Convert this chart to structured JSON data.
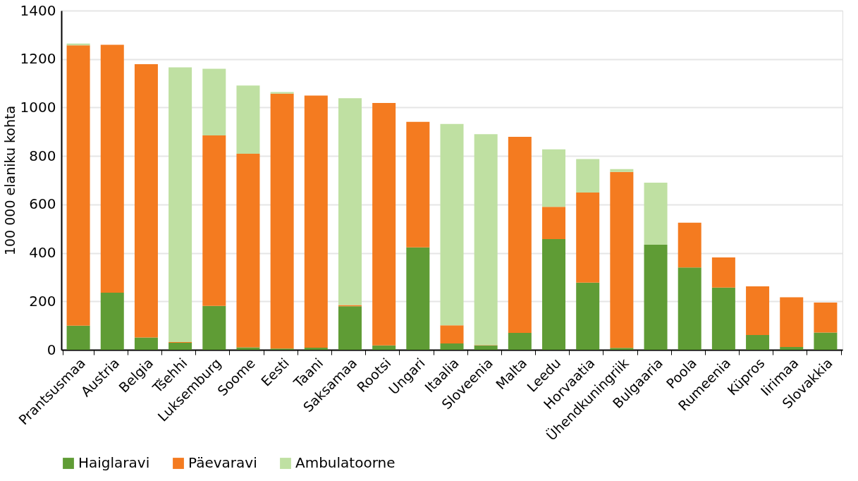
{
  "chart_data": {
    "type": "bar",
    "stacked": true,
    "ylabel": "100 000 elaniku kohta",
    "categories": [
      "Prantsusmaa",
      "Austria",
      "Belgia",
      "Tšehhi",
      "Luksemburg",
      "Soome",
      "Eesti",
      "Taani",
      "Saksamaa",
      "Rootsi",
      "Ungari",
      "Itaalia",
      "Sloveenia",
      "Malta",
      "Leedu",
      "Horvaatia",
      "Ühendkuningriik",
      "Bulgaaria",
      "Poola",
      "Rumeenia",
      "Küpros",
      "Iirimaa",
      "Slovakkia"
    ],
    "series": [
      {
        "name": "Haiglaravi",
        "color": "#5f9c35",
        "values": [
          100,
          236,
          51,
          29,
          181,
          10,
          5,
          9,
          180,
          18,
          423,
          26,
          18,
          70,
          457,
          277,
          8,
          434,
          340,
          257,
          61,
          12,
          71
        ]
      },
      {
        "name": "Päevaravi",
        "color": "#f47b20",
        "values": [
          1157,
          1023,
          1128,
          3,
          704,
          799,
          1052,
          1040,
          5,
          1001,
          518,
          75,
          2,
          809,
          133,
          372,
          726,
          0,
          185,
          124,
          201,
          205,
          124
        ]
      },
      {
        "name": "Ambulatoorne",
        "color": "#bfe0a2",
        "values": [
          7,
          0,
          0,
          1134,
          275,
          282,
          7,
          0,
          853,
          0,
          0,
          831,
          870,
          0,
          237,
          138,
          12,
          256,
          0,
          0,
          0,
          0,
          0
        ]
      }
    ],
    "ylim": [
      0,
      1400
    ],
    "yticks": [
      0,
      200,
      400,
      600,
      800,
      1000,
      1200,
      1400
    ],
    "grid": "y",
    "legend": "bottom"
  }
}
